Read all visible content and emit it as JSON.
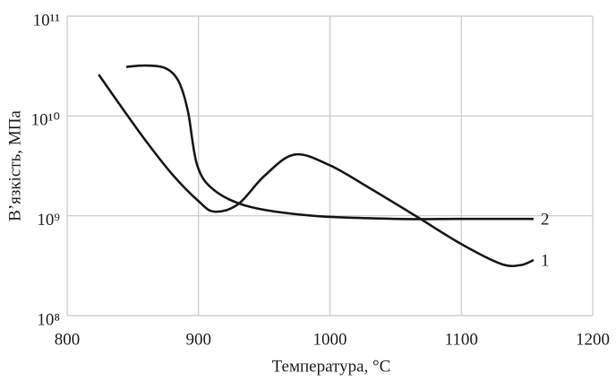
{
  "chart_data": {
    "type": "line",
    "y_label": "В’язкість, МПа",
    "x_label": "Температура, °С",
    "log_y": true,
    "grid": true,
    "color": "#1a1a1a",
    "xlim": [
      800,
      1200
    ],
    "xticks": [
      800,
      900,
      1000,
      1100,
      1200
    ],
    "ylim": [
      100000000,
      100000000000
    ],
    "yticks": [
      {
        "value": 100000000,
        "label": "10⁸"
      },
      {
        "value": 1000000000,
        "label": "10⁹"
      },
      {
        "value": 10000000000,
        "label": "10¹⁰"
      },
      {
        "value": 100000000000,
        "label": "10¹¹"
      }
    ],
    "series": [
      {
        "name": "1",
        "x": [
          824,
          840,
          860,
          880,
          900,
          912,
          930,
          950,
          973,
          1000,
          1030,
          1065,
          1100,
          1130,
          1145,
          1155
        ],
        "values": [
          26000000000,
          13000000000,
          5600000000,
          2600000000,
          1400000000,
          1100000000,
          1300000000,
          2500000000,
          4100000000,
          3200000000,
          1900000000,
          1000000000,
          520000000,
          330000000,
          320000000,
          360000000
        ]
      },
      {
        "name": "2",
        "x": [
          845,
          860,
          875,
          885,
          892,
          899,
          912,
          939,
          987,
          1050,
          1100,
          1155
        ],
        "values": [
          31000000000,
          32000000000,
          30000000000,
          22000000000,
          11000000000,
          3200000000,
          1800000000,
          1230000000,
          1000000000,
          930000000,
          930000000,
          930000000
        ]
      }
    ]
  }
}
